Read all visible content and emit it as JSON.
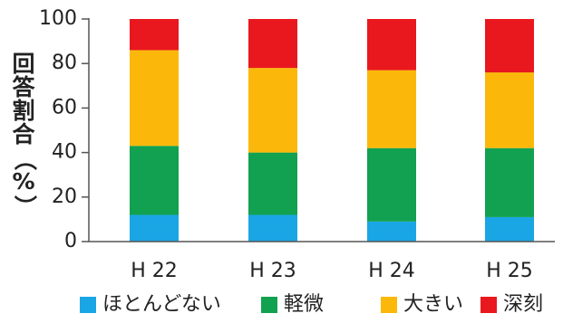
{
  "chart_data": {
    "type": "bar",
    "stacked": true,
    "categories": [
      "H 22",
      "H 23",
      "H 24",
      "H 25"
    ],
    "series": [
      {
        "name": "ほとんどない",
        "color": "#1aa6e4",
        "values": [
          12,
          12,
          9,
          11
        ]
      },
      {
        "name": "軽微",
        "color": "#12a150",
        "values": [
          31,
          28,
          33,
          31
        ]
      },
      {
        "name": "大きい",
        "color": "#fbb80b",
        "values": [
          43,
          38,
          35,
          34
        ]
      },
      {
        "name": "深刻",
        "color": "#e8181e",
        "values": [
          14,
          22,
          23,
          24
        ]
      }
    ],
    "ylabel": "回答割合（%）",
    "xlabel": "",
    "ylim": [
      0,
      100
    ],
    "yticks": [
      0,
      20,
      40,
      60,
      80,
      100
    ],
    "grid": false,
    "legend_position": "bottom"
  }
}
